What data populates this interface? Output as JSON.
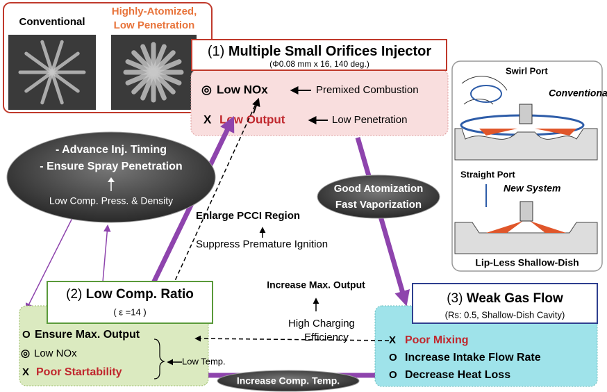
{
  "spray_images": {
    "conventional": "Conventional",
    "new": [
      "Highly-Atomized,",
      "Low Penetration"
    ]
  },
  "injector": {
    "number": "(1)",
    "title": "Multiple Small Orifices Injector",
    "spec": "(Φ0.08 mm x 16, 140 deg.)",
    "effects": [
      {
        "marker": "◎",
        "text": "Low NOx",
        "cause": "Premixed Combustion"
      },
      {
        "marker": "X",
        "text": "Low Output",
        "cause": "Low Penetration"
      }
    ]
  },
  "ports": {
    "swirl": "Swirl Port",
    "conventional": "Conventional",
    "straight": "Straight Port",
    "new_system": "New System",
    "piston": "Lip-Less Shallow-Dish"
  },
  "timing": {
    "lines": [
      "- Advance Inj. Timing",
      "- Ensure Spray Penetration"
    ],
    "cause": "Low Comp. Press. & Density"
  },
  "atomization": [
    "Good Atomization",
    "Fast Vaporization"
  ],
  "pcci": {
    "result": "Enlarge PCCI Region",
    "cause": "Suppress Premature Ignition"
  },
  "compression": {
    "number": "(2)",
    "title": "Low Comp. Ratio",
    "spec": "( ε =14 )",
    "effects": [
      {
        "marker": "O",
        "text": "Ensure Max. Output"
      },
      {
        "marker": "◎",
        "text": "Low NOx"
      },
      {
        "marker": "X",
        "text": "Poor Startability"
      }
    ],
    "low_temp": "Low Temp."
  },
  "output": {
    "result": "Increase Max. Output",
    "cause": [
      "High Charging",
      "Efficiency"
    ]
  },
  "gas_flow": {
    "number": "(3)",
    "title": "Weak Gas Flow",
    "spec": "(Rs: 0.5, Shallow-Dish Cavity)",
    "effects": [
      {
        "marker": "X",
        "text": "Poor Mixing"
      },
      {
        "marker": "O",
        "text": "Increase Intake Flow Rate"
      },
      {
        "marker": "O",
        "text": "Decrease Heat Loss"
      }
    ]
  },
  "comp_temp": "Increase Comp. Temp."
}
